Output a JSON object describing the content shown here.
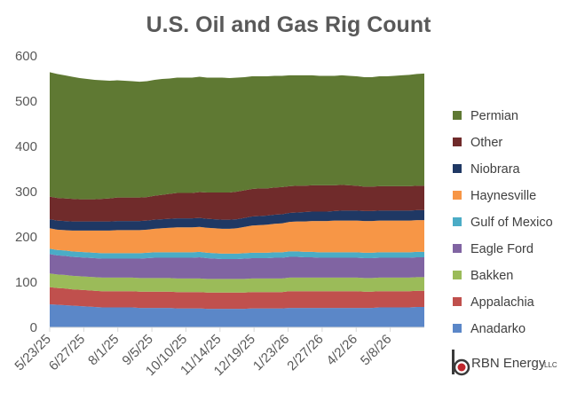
{
  "chart_data": {
    "type": "area",
    "stacked": true,
    "title": "U.S. Oil and Gas Rig Count",
    "xlabel": "",
    "ylabel": "",
    "ylim": [
      0,
      600
    ],
    "yticks": [
      0,
      100,
      200,
      300,
      400,
      500,
      600
    ],
    "grid": false,
    "legend_position": "right",
    "xtick_labels": [
      "5/23/25",
      "6/27/25",
      "8/1/25",
      "9/5/25",
      "10/10/25",
      "11/14/25",
      "12/19/25",
      "1/23/26",
      "2/27/26",
      "4/2/26",
      "5/8/26"
    ],
    "x_interval": "weekly",
    "series": [
      {
        "name": "Anadarko",
        "color": "#5b87c8",
        "values": [
          51,
          50,
          49,
          48,
          47,
          46,
          45,
          44,
          44,
          44,
          44,
          44,
          43,
          43,
          43,
          43,
          43,
          42,
          42,
          42,
          42,
          41,
          41,
          41,
          41,
          41,
          41,
          42,
          42,
          42,
          42,
          42,
          43,
          43,
          43,
          43,
          43,
          43,
          43,
          43,
          43,
          43,
          43,
          43,
          44,
          44,
          44,
          44,
          44,
          45,
          45
        ]
      },
      {
        "name": "Appalachia",
        "color": "#c0504d",
        "values": [
          38,
          37,
          37,
          36,
          36,
          36,
          36,
          36,
          36,
          36,
          36,
          36,
          36,
          36,
          36,
          36,
          36,
          36,
          36,
          36,
          36,
          36,
          36,
          36,
          36,
          36,
          36,
          36,
          36,
          36,
          36,
          36,
          37,
          37,
          37,
          37,
          37,
          37,
          37,
          37,
          37,
          37,
          36,
          36,
          36,
          36,
          36,
          36,
          36,
          36,
          36
        ]
      },
      {
        "name": "Bakken",
        "color": "#9bbb59",
        "values": [
          30,
          30,
          30,
          30,
          30,
          30,
          30,
          30,
          30,
          30,
          30,
          30,
          30,
          30,
          30,
          30,
          30,
          30,
          30,
          30,
          30,
          30,
          30,
          30,
          30,
          30,
          30,
          30,
          30,
          30,
          30,
          30,
          30,
          30,
          30,
          30,
          30,
          30,
          30,
          30,
          30,
          30,
          30,
          30,
          30,
          30,
          30,
          30,
          30,
          30,
          30
        ]
      },
      {
        "name": "Eagle Ford",
        "color": "#8064a2",
        "values": [
          43,
          42,
          42,
          42,
          42,
          42,
          42,
          42,
          42,
          42,
          42,
          42,
          43,
          44,
          45,
          45,
          45,
          46,
          46,
          46,
          47,
          46,
          45,
          44,
          44,
          44,
          45,
          45,
          45,
          45,
          46,
          46,
          46,
          46,
          45,
          45,
          44,
          44,
          44,
          44,
          44,
          44,
          44,
          44,
          44,
          44,
          44,
          44,
          44,
          44,
          44
        ]
      },
      {
        "name": "Gulf of Mexico",
        "color": "#4bacc6",
        "values": [
          12,
          12,
          12,
          12,
          12,
          12,
          12,
          12,
          12,
          12,
          12,
          12,
          12,
          12,
          12,
          12,
          12,
          12,
          12,
          12,
          12,
          12,
          12,
          12,
          12,
          12,
          12,
          12,
          12,
          12,
          12,
          12,
          12,
          12,
          12,
          12,
          12,
          12,
          12,
          12,
          12,
          12,
          12,
          12,
          12,
          12,
          12,
          12,
          12,
          12,
          12
        ]
      },
      {
        "name": "Haynesville",
        "color": "#f79646",
        "values": [
          45,
          45,
          45,
          46,
          47,
          48,
          49,
          50,
          50,
          51,
          51,
          51,
          51,
          51,
          52,
          53,
          54,
          55,
          55,
          55,
          55,
          55,
          55,
          55,
          55,
          56,
          58,
          60,
          61,
          62,
          63,
          64,
          65,
          66,
          67,
          68,
          69,
          69,
          70,
          70,
          70,
          70,
          70,
          70,
          70,
          70,
          70,
          70,
          70,
          70,
          70
        ]
      },
      {
        "name": "Niobrara",
        "color": "#1f3864",
        "values": [
          20,
          20,
          20,
          20,
          20,
          20,
          20,
          20,
          20,
          20,
          20,
          20,
          20,
          20,
          20,
          20,
          20,
          20,
          20,
          20,
          20,
          20,
          20,
          20,
          20,
          20,
          20,
          20,
          20,
          20,
          20,
          20,
          20,
          20,
          21,
          21,
          21,
          21,
          21,
          22,
          22,
          22,
          22,
          22,
          22,
          22,
          22,
          22,
          22,
          22,
          22
        ]
      },
      {
        "name": "Other",
        "color": "#702b2b",
        "values": [
          50,
          50,
          50,
          50,
          49,
          49,
          49,
          50,
          51,
          52,
          52,
          52,
          52,
          52,
          53,
          54,
          55,
          56,
          56,
          56,
          57,
          58,
          59,
          60,
          60,
          61,
          61,
          61,
          61,
          60,
          60,
          60,
          59,
          59,
          58,
          58,
          58,
          58,
          57,
          57,
          56,
          55,
          54,
          54,
          54,
          54,
          54,
          54,
          54,
          54,
          54
        ]
      },
      {
        "name": "Permian",
        "color": "#5f7933",
        "values": [
          275,
          274,
          272,
          270,
          268,
          266,
          264,
          262,
          260,
          259,
          258,
          257,
          256,
          256,
          256,
          256,
          255,
          255,
          255,
          255,
          255,
          254,
          254,
          254,
          253,
          252,
          250,
          249,
          248,
          248,
          247,
          246,
          245,
          244,
          244,
          243,
          242,
          242,
          242,
          242,
          242,
          242,
          242,
          242,
          243,
          243,
          244,
          245,
          246,
          247,
          248
        ]
      }
    ]
  },
  "branding": {
    "logo_text": "RBN Energy",
    "logo_suffix": "LLC",
    "logo_color": "#c0272d"
  }
}
